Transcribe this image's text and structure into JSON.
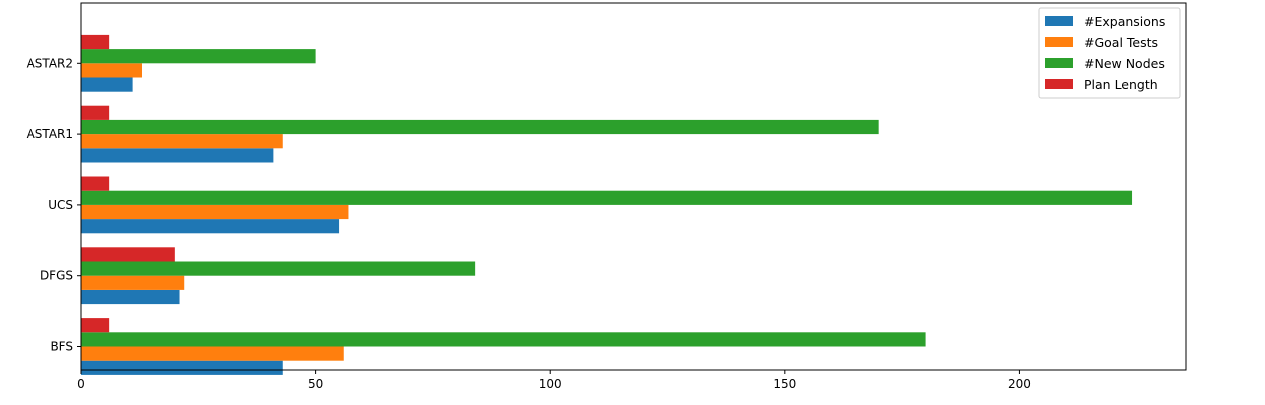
{
  "chart_data": {
    "type": "bar",
    "orientation": "horizontal",
    "title": "",
    "xlabel": "",
    "ylabel": "",
    "categories": [
      "BFS",
      "DFGS",
      "UCS",
      "ASTAR1",
      "ASTAR2"
    ],
    "series": [
      {
        "name": "#Expansions",
        "color": "#1f77b4",
        "values": [
          43,
          21,
          55,
          41,
          11
        ]
      },
      {
        "name": "#Goal Tests",
        "color": "#ff7f0e",
        "values": [
          56,
          22,
          57,
          43,
          13
        ]
      },
      {
        "name": "#New Nodes",
        "color": "#2ca02c",
        "values": [
          180,
          84,
          224,
          170,
          50
        ]
      },
      {
        "name": "Plan Length",
        "color": "#d62728",
        "values": [
          6,
          20,
          6,
          6,
          6
        ]
      }
    ],
    "xlim": [
      0,
      235.5
    ],
    "xticks": [
      0,
      50,
      100,
      150,
      200
    ],
    "grid": false,
    "legend_position": "top-right"
  }
}
